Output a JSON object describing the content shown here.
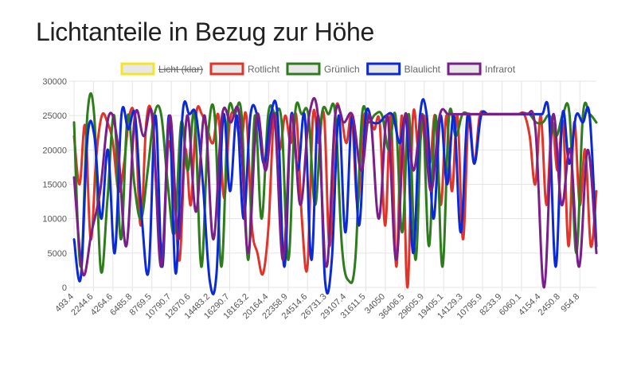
{
  "page": {
    "title": "Lichtanteile in Bezug zur Höhe"
  },
  "chart_data": {
    "type": "line",
    "title": "Lichtanteile in Bezug zur Höhe",
    "xlabel": "",
    "ylabel": "",
    "ylim": [
      0,
      30000
    ],
    "y_ticks": [
      0,
      5000,
      10000,
      15000,
      20000,
      25000,
      30000
    ],
    "x_tick_labels": [
      "493.4",
      "2244.6",
      "4264.6",
      "6485.8",
      "8769.5",
      "10790.7",
      "12670.6",
      "14483.2",
      "16290.7",
      "18163.2",
      "20164.4",
      "22358.9",
      "24514.6",
      "26731.3",
      "29107.4",
      "31611.5",
      "34050",
      "36406.5",
      "29605.9",
      "19405.1",
      "14129.3",
      "10795.9",
      "8233.9",
      "6060.1",
      "4154.4",
      "2450.8",
      "954.8"
    ],
    "grid": true,
    "legend_position": "top",
    "series": [
      {
        "name": "Licht (klar)",
        "color": "#f5e52a",
        "hidden": true,
        "values": []
      },
      {
        "name": "Rotlicht",
        "color": "#e0342a",
        "hidden": false,
        "values": [
          22000,
          15000,
          23500,
          7000,
          19000,
          25000,
          24000,
          21000,
          14000,
          18000,
          25200,
          24000,
          9000,
          24000,
          25000,
          12000,
          6000,
          21000,
          14000,
          4000,
          20000,
          12000,
          25200,
          25200,
          23000,
          21000,
          25000,
          13000,
          24000,
          25000,
          21000,
          25000,
          9000,
          5000,
          2000,
          9000,
          25000,
          20000,
          25000,
          21000,
          25000,
          10000,
          3000,
          25000,
          21000,
          25000,
          6000,
          25000,
          25200,
          21000,
          25000,
          12000,
          24000,
          25000,
          23000,
          24000,
          9000,
          25000,
          3000,
          25000,
          0,
          25000,
          20000,
          25000,
          18000,
          25000,
          12000,
          25000,
          14000,
          25000,
          7000,
          25000,
          18000,
          25000,
          25200,
          25200,
          25200,
          25200,
          25200,
          25200,
          25200,
          25200,
          22000,
          15000,
          25000,
          12000,
          24000,
          17000,
          24000,
          6000,
          24000,
          12000,
          20000,
          6000,
          14000
        ]
      },
      {
        "name": "Grünlich",
        "color": "#2e7d1c",
        "hidden": false,
        "values": [
          24000,
          3000,
          25200,
          25200,
          2500,
          13000,
          25000,
          7000,
          25000,
          15000,
          10000,
          17000,
          25200,
          25200,
          15000,
          8000,
          24000,
          17000,
          25200,
          3000,
          22000,
          25000,
          3000,
          25000,
          25200,
          25200,
          4000,
          25000,
          10000,
          25200,
          25200,
          24000,
          4000,
          25200,
          25200,
          25000,
          12000,
          25200,
          25200,
          25200,
          6000,
          1000,
          4000,
          25000,
          24000,
          25200,
          25000,
          20000,
          25000,
          8000,
          25200,
          4000,
          25200,
          6000,
          25000,
          3000,
          25000,
          22000,
          25200,
          25200,
          25200,
          25200,
          25200,
          25200,
          25200,
          25200,
          25200,
          25200,
          25200,
          24000,
          24000,
          25000,
          22000,
          25200,
          25000,
          5000,
          25200,
          25200,
          24000
        ]
      },
      {
        "name": "Blaulicht",
        "color": "#0a2ad8",
        "hidden": false,
        "values": [
          7000,
          1500,
          22000,
          22000,
          10000,
          20000,
          5000,
          25200,
          23000,
          25000,
          10000,
          2500,
          25000,
          3000,
          25000,
          2000,
          25200,
          25200,
          25000,
          15000,
          1000,
          2000,
          25000,
          14000,
          25000,
          10000,
          25000,
          25000,
          18000,
          25200,
          25000,
          3000,
          25000,
          17000,
          25000,
          4000,
          25000,
          1000,
          4000,
          25000,
          8000,
          25000,
          9000,
          25000,
          24000,
          24000,
          25000,
          25000,
          21000,
          24000,
          5000,
          25000,
          25000,
          10000,
          25000,
          15000,
          25000,
          8000,
          25000,
          18000,
          25000,
          25200,
          25200,
          25200,
          25200,
          25200,
          25200,
          25200,
          25200,
          25200,
          25200,
          3000,
          25200,
          18000,
          25000,
          24000,
          25000,
          6000
        ]
      },
      {
        "name": "Infrarot",
        "color": "#7a1f8a",
        "hidden": false,
        "values": [
          16000,
          2000,
          8000,
          14000,
          25000,
          21000,
          6000,
          25000,
          22000,
          25000,
          3000,
          25000,
          7000,
          25000,
          11000,
          25000,
          7000,
          25000,
          24000,
          25000,
          5000,
          25000,
          17000,
          25000,
          4000,
          25000,
          12000,
          25000,
          25200,
          3000,
          25000,
          24000,
          25000,
          17000,
          25000,
          10000,
          25000,
          4000,
          25000,
          17000,
          25000,
          14000,
          25000,
          25200,
          25200,
          25200,
          25200,
          25200,
          25200,
          25200,
          25200,
          25200,
          25200,
          23000,
          0,
          25000,
          12000,
          20000,
          3000,
          20000,
          5000
        ]
      }
    ]
  }
}
